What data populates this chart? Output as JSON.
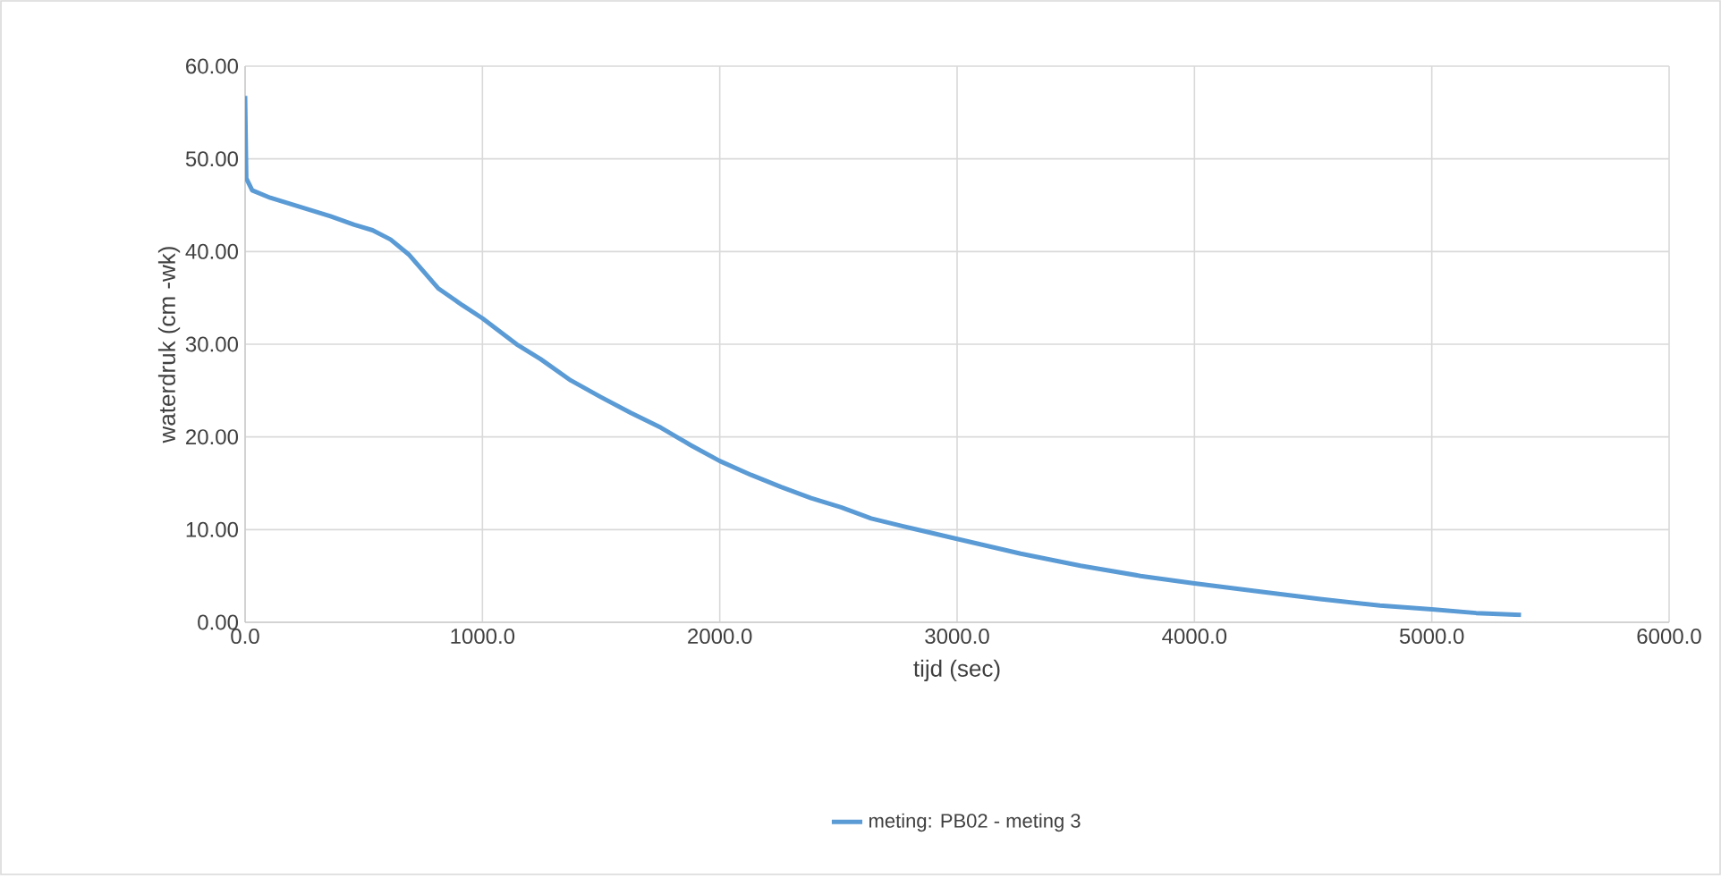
{
  "chart_data": {
    "type": "line",
    "xlabel": "tijd (sec)",
    "ylabel": "waterdruk (cm -wk)",
    "xlim": [
      0,
      6000
    ],
    "xticks": [
      {
        "value": 0,
        "label": "0.0"
      },
      {
        "value": 1000,
        "label": "1000.0"
      },
      {
        "value": 2000,
        "label": "2000.0"
      },
      {
        "value": 3000,
        "label": "3000.0"
      },
      {
        "value": 4000,
        "label": "4000.0"
      },
      {
        "value": 5000,
        "label": "5000.0"
      },
      {
        "value": 6000,
        "label": "6000.0"
      }
    ],
    "ylim": [
      0,
      60
    ],
    "yticks": [
      {
        "value": 0,
        "label": "0.00"
      },
      {
        "value": 10,
        "label": "10.00"
      },
      {
        "value": 20,
        "label": "20.00"
      },
      {
        "value": 30,
        "label": "30.00"
      },
      {
        "value": 40,
        "label": "40.00"
      },
      {
        "value": 50,
        "label": "50.00"
      },
      {
        "value": 60,
        "label": "60.00"
      }
    ],
    "grid": true,
    "legend": "bottom",
    "marker": "none",
    "line_style": "solid",
    "series": [
      {
        "name": "meting: PB02 - meting 3",
        "color": "#5b9bd5",
        "x": [
          0,
          5,
          30,
          106,
          233,
          360,
          460,
          537,
          613,
          689,
          815,
          916,
          1000,
          1144,
          1245,
          1372,
          1499,
          1625,
          1752,
          1878,
          2000,
          2132,
          2258,
          2385,
          2511,
          2638,
          2765,
          3000,
          3268,
          3520,
          3773,
          4000,
          4278,
          4530,
          4782,
          5000,
          5187,
          5376
        ],
        "values": [
          56.8,
          47.9,
          46.6,
          45.8,
          44.8,
          43.8,
          42.9,
          42.3,
          41.3,
          39.7,
          36.0,
          34.2,
          32.8,
          30.0,
          28.4,
          26.1,
          24.3,
          22.6,
          21.0,
          19.1,
          17.4,
          15.9,
          14.6,
          13.4,
          12.4,
          11.2,
          10.4,
          9.0,
          7.4,
          6.1,
          5.0,
          4.2,
          3.3,
          2.5,
          1.8,
          1.4,
          1.0,
          0.8
        ]
      }
    ]
  }
}
